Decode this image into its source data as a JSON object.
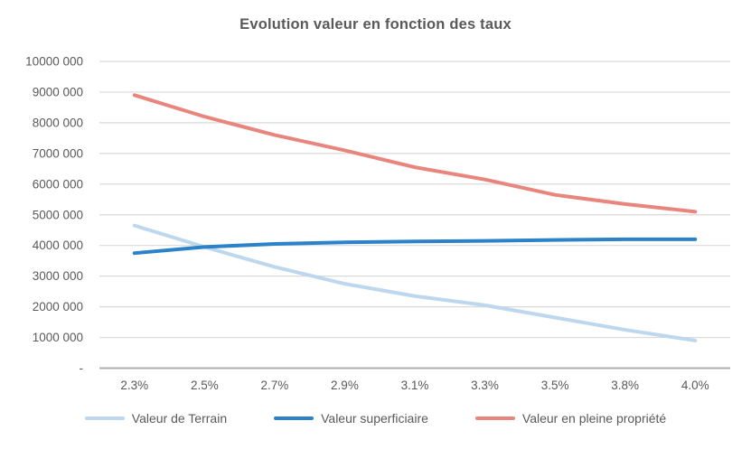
{
  "title": "Evolution valeur en fonction des taux",
  "chart_data": {
    "type": "line",
    "title": "Evolution valeur en fonction des taux",
    "categories": [
      "2.3%",
      "2.5%",
      "2.7%",
      "2.9%",
      "3.1%",
      "3.3%",
      "3.5%",
      "3.8%",
      "4.0%"
    ],
    "series": [
      {
        "name": "Valeur de Terrain",
        "color": "#BDD7EE",
        "values": [
          4650000,
          3950000,
          3300000,
          2750000,
          2350000,
          2050000,
          1650000,
          1250000,
          900000
        ]
      },
      {
        "name": "Valeur superficiaire",
        "color": "#2C82C9",
        "values": [
          3750000,
          3950000,
          4050000,
          4100000,
          4130000,
          4150000,
          4180000,
          4200000,
          4200000
        ]
      },
      {
        "name": "Valeur en pleine propriété",
        "color": "#E8867D",
        "values": [
          8900000,
          8200000,
          7600000,
          7100000,
          6550000,
          6150000,
          5650000,
          5350000,
          5100000
        ]
      }
    ],
    "y_tick_labels": [
      "10000 000",
      "9000 000",
      "8000 000",
      "7000 000",
      "6000 000",
      "5000 000",
      "4000 000",
      "3000 000",
      "2000 000",
      "1000 000",
      "-"
    ],
    "ylim": [
      0,
      10000000
    ],
    "xlabel": "",
    "ylabel": "",
    "grid": "horizontal",
    "legend_position": "bottom",
    "colors": {
      "text": "#595959",
      "gridline": "#D9D9D9",
      "axis_line": "#AFAFAF",
      "background": "#FFFFFF"
    }
  }
}
